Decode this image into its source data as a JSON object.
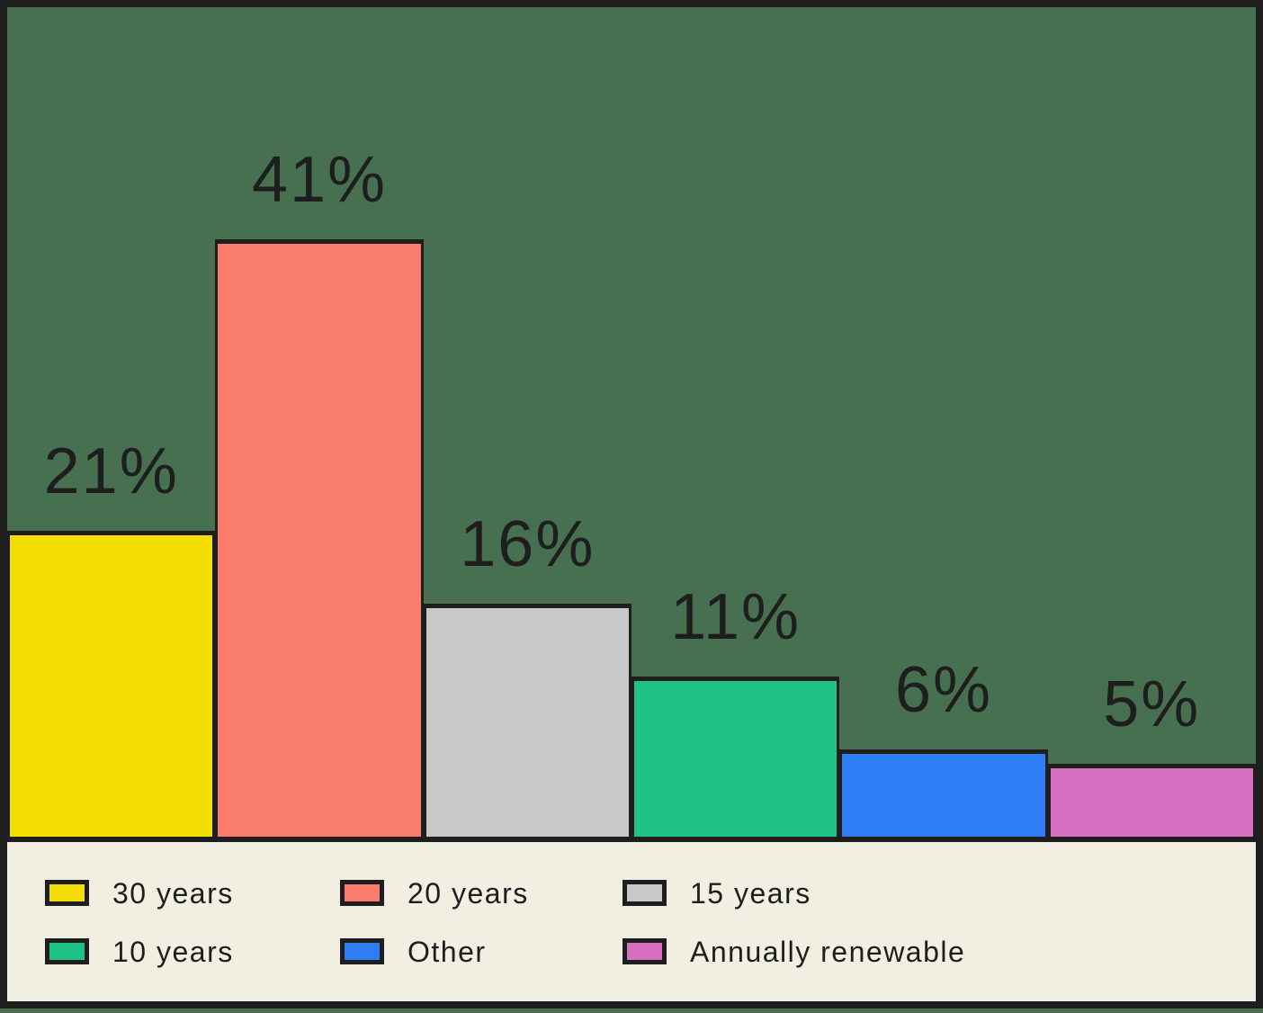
{
  "chart_data": {
    "type": "bar",
    "title": "",
    "xlabel": "",
    "ylabel": "",
    "categories": [
      "30 years",
      "20 years",
      "15 years",
      "10 years",
      "Other",
      "Annually renewable"
    ],
    "values": [
      21,
      41,
      16,
      11,
      6,
      5
    ],
    "value_labels": [
      "21%",
      "41%",
      "16%",
      "11%",
      "6%",
      "5%"
    ],
    "bar_colors": [
      "#F4DC05",
      "#F97C6C",
      "#C8C8C9",
      "#1FC287",
      "#2F7DF5",
      "#D76FC0"
    ],
    "ylim": [
      0,
      57
    ],
    "grid": false,
    "axis_tick_labels": [],
    "legend_position": "bottom",
    "legend": [
      {
        "label": "30 years",
        "color": "#F4DC05"
      },
      {
        "label": "20 years",
        "color": "#F97C6C"
      },
      {
        "label": "15 years",
        "color": "#C8C8C9"
      },
      {
        "label": "10 years",
        "color": "#1FC287"
      },
      {
        "label": "Other",
        "color": "#2F7DF5"
      },
      {
        "label": "Annually renewable",
        "color": "#D76FC0"
      }
    ]
  },
  "colors": {
    "background": "#477050",
    "border": "#1E1E1E",
    "legend_background": "#F0EFE2",
    "text": "#1E1E1E"
  }
}
